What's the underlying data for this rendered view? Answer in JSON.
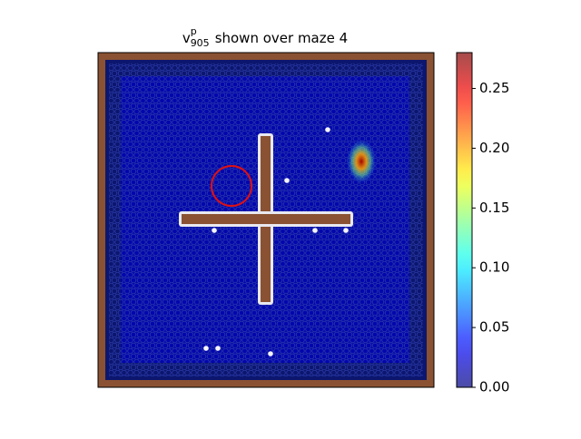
{
  "chart_data": {
    "type": "heatmap",
    "title": {
      "base": "v",
      "superscript": "p",
      "subscript": "905",
      "text": "shown over maze 4"
    },
    "colormap": "jet",
    "field_value": 0.02,
    "peak_value": 0.27,
    "clim": [
      0,
      0.28
    ],
    "cticks": [
      {
        "value": 0,
        "label": "0.00"
      },
      {
        "value": 0.05,
        "label": "0.05"
      },
      {
        "value": 0.1,
        "label": "0.10"
      },
      {
        "value": 0.15,
        "label": "0.15"
      },
      {
        "value": 0.2,
        "label": "0.20"
      },
      {
        "value": 0.25,
        "label": "0.25"
      }
    ]
  }
}
